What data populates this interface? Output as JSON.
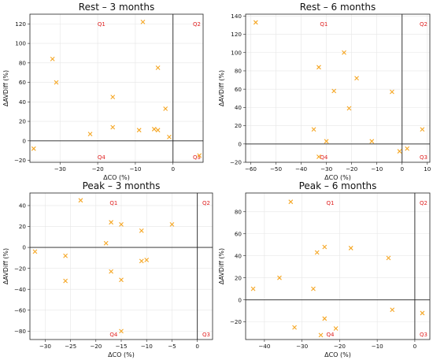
{
  "colors": {
    "marker": "#F5A623",
    "quadrant_label": "#E02020",
    "grid": "#E6E6E6",
    "axis": "#222222"
  },
  "chart_data": [
    {
      "type": "scatter",
      "title": "Rest – 3 months",
      "xlabel": "ΔCO (%)",
      "ylabel": "ΔAVDiff (%)",
      "marker": "x",
      "xlim": [
        -38,
        8
      ],
      "ylim": [
        -22,
        130
      ],
      "xticks": [
        -30,
        -20,
        -10,
        0
      ],
      "yticks": [
        -20,
        0,
        20,
        40,
        60,
        80,
        100,
        120
      ],
      "grid": true,
      "quadrant_labels": [
        "Q1",
        "Q2",
        "Q3",
        "Q4"
      ],
      "points": [
        {
          "x": -37,
          "y": -8
        },
        {
          "x": -32,
          "y": 84
        },
        {
          "x": -31,
          "y": 60
        },
        {
          "x": -22,
          "y": 7
        },
        {
          "x": -16,
          "y": 45
        },
        {
          "x": -16,
          "y": 14
        },
        {
          "x": -9,
          "y": 11
        },
        {
          "x": -8,
          "y": 122
        },
        {
          "x": -5,
          "y": 12
        },
        {
          "x": -4,
          "y": 11
        },
        {
          "x": -4,
          "y": 75
        },
        {
          "x": -2,
          "y": 33
        },
        {
          "x": -1,
          "y": 4
        },
        {
          "x": 7,
          "y": -15
        }
      ]
    },
    {
      "type": "scatter",
      "title": "Rest – 6 months",
      "xlabel": "ΔCO (%)",
      "ylabel": "ΔAVDiff (%)",
      "marker": "x",
      "xlim": [
        -62,
        11
      ],
      "ylim": [
        -20,
        142
      ],
      "xticks": [
        -60,
        -50,
        -40,
        -30,
        -20,
        -10,
        0,
        10
      ],
      "yticks": [
        -20,
        0,
        20,
        40,
        60,
        80,
        100,
        120,
        140
      ],
      "grid": true,
      "quadrant_labels": [
        "Q1",
        "Q2",
        "Q3",
        "Q4"
      ],
      "points": [
        {
          "x": -58,
          "y": 133
        },
        {
          "x": -35,
          "y": 16
        },
        {
          "x": -33,
          "y": 84
        },
        {
          "x": -33,
          "y": -14
        },
        {
          "x": -30,
          "y": 3
        },
        {
          "x": -27,
          "y": 58
        },
        {
          "x": -23,
          "y": 100
        },
        {
          "x": -18,
          "y": 72
        },
        {
          "x": -21,
          "y": 39
        },
        {
          "x": -12,
          "y": 3
        },
        {
          "x": -4,
          "y": 57
        },
        {
          "x": -1,
          "y": -8
        },
        {
          "x": 2,
          "y": -5
        },
        {
          "x": 8,
          "y": 16
        }
      ]
    },
    {
      "type": "scatter",
      "title": "Peak – 3 months",
      "xlabel": "ΔCO (%)",
      "ylabel": "ΔAVDiff (%)",
      "marker": "x",
      "xlim": [
        -33,
        3
      ],
      "ylim": [
        -88,
        52
      ],
      "xticks": [
        -30,
        -25,
        -20,
        -15,
        -10,
        -5,
        0
      ],
      "yticks": [
        -80,
        -60,
        -40,
        -20,
        0,
        20,
        40
      ],
      "grid": true,
      "quadrant_labels": [
        "Q1",
        "Q2",
        "Q3",
        "Q4"
      ],
      "points": [
        {
          "x": -32,
          "y": -4
        },
        {
          "x": -26,
          "y": -8
        },
        {
          "x": -26,
          "y": -32
        },
        {
          "x": -23,
          "y": 45
        },
        {
          "x": -18,
          "y": 4
        },
        {
          "x": -17,
          "y": 24
        },
        {
          "x": -17,
          "y": -23
        },
        {
          "x": -15,
          "y": 22
        },
        {
          "x": -15,
          "y": -31
        },
        {
          "x": -15,
          "y": -80
        },
        {
          "x": -11,
          "y": 16
        },
        {
          "x": -11,
          "y": -13
        },
        {
          "x": -10,
          "y": -12
        },
        {
          "x": -5,
          "y": 22
        }
      ]
    },
    {
      "type": "scatter",
      "title": "Peak – 6 months",
      "xlabel": "ΔCO (%)",
      "ylabel": "ΔAVDiff (%)",
      "marker": "x",
      "xlim": [
        -45,
        4
      ],
      "ylim": [
        -36,
        97
      ],
      "xticks": [
        -40,
        -30,
        -20,
        -10,
        0
      ],
      "yticks": [
        -20,
        0,
        20,
        40,
        60,
        80
      ],
      "grid": true,
      "quadrant_labels": [
        "Q1",
        "Q2",
        "Q3",
        "Q4"
      ],
      "points": [
        {
          "x": -43,
          "y": 10
        },
        {
          "x": -36,
          "y": 20
        },
        {
          "x": -33,
          "y": 89
        },
        {
          "x": -32,
          "y": -25
        },
        {
          "x": -27,
          "y": 10
        },
        {
          "x": -26,
          "y": 43
        },
        {
          "x": -24,
          "y": 48
        },
        {
          "x": -24,
          "y": -17
        },
        {
          "x": -25,
          "y": -32
        },
        {
          "x": -21,
          "y": -26
        },
        {
          "x": -17,
          "y": 47
        },
        {
          "x": -7,
          "y": 38
        },
        {
          "x": -6,
          "y": -9
        },
        {
          "x": 2,
          "y": -12
        }
      ]
    }
  ]
}
